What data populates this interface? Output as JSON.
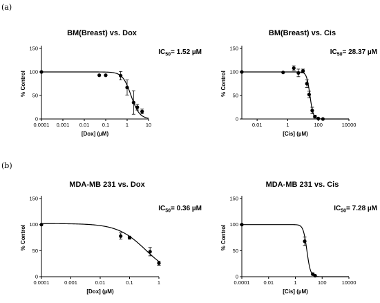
{
  "panel_labels": [
    "(a)",
    "(b)"
  ],
  "chart_data": [
    {
      "type": "scatter",
      "title": "BM(Breast) vs. Dox",
      "xlabel": "[Dox] (µM)",
      "ylabel": "% Control",
      "xscale": "log",
      "xlim": [
        0.0001,
        10
      ],
      "ylim": [
        0,
        150
      ],
      "xticks": [
        0.0001,
        0.001,
        0.01,
        0.1,
        1,
        10
      ],
      "xtick_labels": [
        "0.0001",
        "0.001",
        "0.01",
        "0.1",
        "1",
        "10"
      ],
      "yticks": [
        0,
        50,
        100,
        150
      ],
      "annotation": {
        "main": "IC",
        "sub": "50",
        "rest": "= 1.52 µM"
      },
      "ic50": 1.52,
      "hill": 2.2,
      "top": 100,
      "bottom": 0,
      "points": [
        {
          "x": 0.0001,
          "y": 100,
          "err": 0
        },
        {
          "x": 0.05,
          "y": 93,
          "err": 0
        },
        {
          "x": 0.1,
          "y": 93,
          "err": 0
        },
        {
          "x": 0.5,
          "y": 92,
          "err": 9
        },
        {
          "x": 1,
          "y": 67,
          "err": 16
        },
        {
          "x": 2,
          "y": 35,
          "err": 25
        },
        {
          "x": 3,
          "y": 25,
          "err": 6
        },
        {
          "x": 5,
          "y": 16,
          "err": 5
        }
      ]
    },
    {
      "type": "scatter",
      "title": "BM(Breast) vs. Cis",
      "xlabel": "[Cis] (µM)",
      "ylabel": "% Control",
      "xscale": "log",
      "xlim": [
        0.001,
        10000
      ],
      "ylim": [
        0,
        150
      ],
      "xticks": [
        0.01,
        1,
        100,
        10000
      ],
      "xtick_labels": [
        "0.01",
        "1",
        "100",
        "10000"
      ],
      "yticks": [
        0,
        50,
        100,
        150
      ],
      "annotation": {
        "main": "IC",
        "sub": "50",
        "rest": "= 28.37 µM"
      },
      "ic50": 28.37,
      "hill": 4,
      "top": 100,
      "bottom": 0,
      "points": [
        {
          "x": 0.001,
          "y": 100,
          "err": 0
        },
        {
          "x": 0.5,
          "y": 99,
          "err": 0
        },
        {
          "x": 2.5,
          "y": 108,
          "err": 5
        },
        {
          "x": 5,
          "y": 98,
          "err": 8
        },
        {
          "x": 10,
          "y": 102,
          "err": 4
        },
        {
          "x": 18,
          "y": 75,
          "err": 8
        },
        {
          "x": 25,
          "y": 52,
          "err": 7
        },
        {
          "x": 40,
          "y": 18,
          "err": 7
        },
        {
          "x": 60,
          "y": 5,
          "err": 3
        },
        {
          "x": 100,
          "y": 1,
          "err": 0
        },
        {
          "x": 200,
          "y": 0,
          "err": 0
        }
      ]
    },
    {
      "type": "scatter",
      "title": "MDA-MB 231 vs. Dox",
      "xlabel": "[Dox] (µM)",
      "ylabel": "% Control",
      "xscale": "log",
      "xlim": [
        0.0001,
        1
      ],
      "ylim": [
        0,
        150
      ],
      "xticks": [
        0.0001,
        0.001,
        0.01,
        0.1,
        1
      ],
      "xtick_labels": [
        "0.0001",
        "0.001",
        "0.01",
        "0.1",
        "1"
      ],
      "yticks": [
        0,
        50,
        100,
        150
      ],
      "annotation": {
        "main": "IC",
        "sub": "50",
        "rest": "= 0.36 µM"
      },
      "ic50": 0.36,
      "hill": 0.9,
      "top": 102,
      "bottom": 0,
      "points": [
        {
          "x": 0.0001,
          "y": 100,
          "err": 0
        },
        {
          "x": 0.05,
          "y": 78,
          "err": 6
        },
        {
          "x": 0.1,
          "y": 75,
          "err": 3
        },
        {
          "x": 0.5,
          "y": 48,
          "err": 8
        },
        {
          "x": 1,
          "y": 26,
          "err": 4
        }
      ]
    },
    {
      "type": "scatter",
      "title": "MDA-MB 231 vs. Cis",
      "xlabel": "[Cis] (µM)",
      "ylabel": "% Control",
      "xscale": "log",
      "xlim": [
        0.0001,
        10000
      ],
      "ylim": [
        0,
        150
      ],
      "xticks": [
        0.0001,
        0.01,
        1,
        100,
        10000
      ],
      "xtick_labels": [
        "0.0001",
        "0.01",
        "1",
        "100",
        "10000"
      ],
      "yticks": [
        0,
        50,
        100,
        150
      ],
      "annotation": {
        "main": "IC",
        "sub": "50",
        "rest": "= 7.28 µM"
      },
      "ic50": 7.28,
      "hill": 3.2,
      "top": 100,
      "bottom": 0,
      "points": [
        {
          "x": 0.0001,
          "y": 100,
          "err": 0
        },
        {
          "x": 5,
          "y": 68,
          "err": 8
        },
        {
          "x": 20,
          "y": 5,
          "err": 2
        },
        {
          "x": 30,
          "y": 2,
          "err": 0
        }
      ]
    }
  ]
}
